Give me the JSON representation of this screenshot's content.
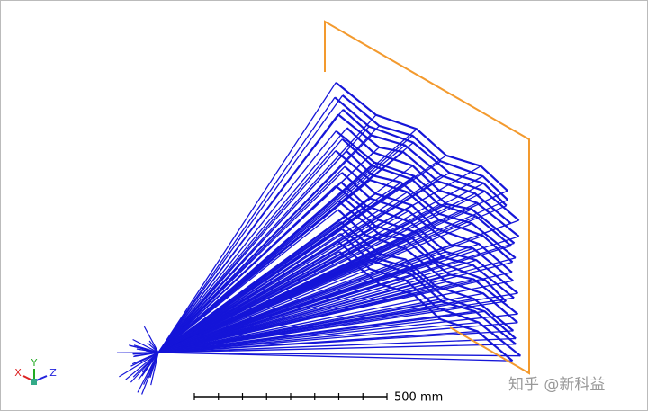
{
  "scale_bar": {
    "label": "500 mm"
  },
  "axes": {
    "x": "X",
    "y": "Y",
    "z": "Z"
  },
  "watermark": "知乎 @新科益"
}
